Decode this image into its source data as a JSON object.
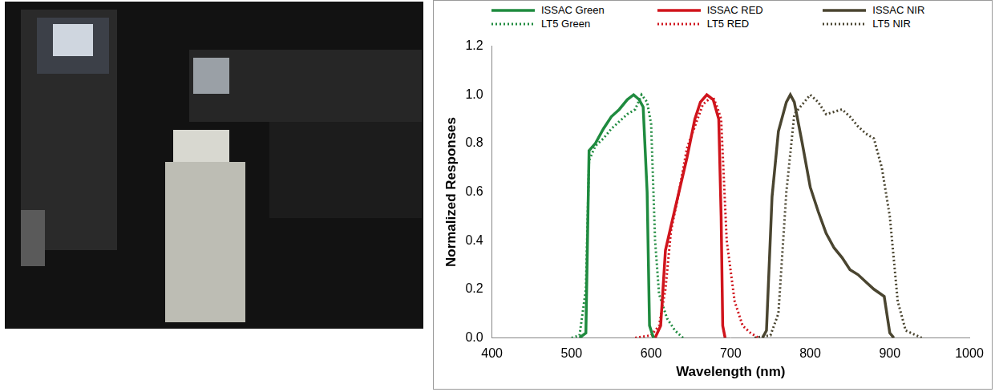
{
  "chart_data": {
    "type": "line",
    "x_label": "Wavelength (nm)",
    "y_label": "Normalized Responses",
    "xlim": [
      400,
      1000
    ],
    "xticks": [
      400,
      500,
      600,
      700,
      800,
      900,
      1000
    ],
    "ylim": [
      0,
      1.2
    ],
    "yticks": [
      {
        "value": 0,
        "label": "0.0"
      },
      {
        "value": 0.2,
        "label": "0.2"
      },
      {
        "value": 0.4,
        "label": "0.4"
      },
      {
        "value": 0.6,
        "label": "0.6"
      },
      {
        "value": 0.8,
        "label": "0.8"
      },
      {
        "value": 1.0,
        "label": "1.0"
      },
      {
        "value": 1.2,
        "label": "1.2"
      }
    ],
    "grid": false,
    "legend": "top",
    "series": [
      {
        "name": "ISSAC Green",
        "color": "#1f8b3f",
        "line_style": "solid",
        "x": [
          510,
          518,
          522,
          530,
          540,
          550,
          560,
          570,
          578,
          585,
          590,
          595,
          598,
          603
        ],
        "values": [
          0,
          0.02,
          0.77,
          0.8,
          0.86,
          0.91,
          0.94,
          0.98,
          1.0,
          0.98,
          0.95,
          0.6,
          0.05,
          0
        ]
      },
      {
        "name": "ISSAC RED",
        "color": "#d0141c",
        "line_style": "solid",
        "x": [
          605,
          612,
          618,
          625,
          635,
          645,
          655,
          662,
          670,
          678,
          685,
          688,
          690,
          693
        ],
        "values": [
          0,
          0.05,
          0.36,
          0.46,
          0.6,
          0.74,
          0.9,
          0.97,
          1.0,
          0.98,
          0.9,
          0.5,
          0.05,
          0
        ]
      },
      {
        "name": "ISSAC NIR",
        "color": "#4a4530",
        "line_style": "solid",
        "x": [
          740,
          745,
          752,
          760,
          770,
          775,
          780,
          790,
          800,
          810,
          820,
          830,
          840,
          850,
          860,
          870,
          880,
          893,
          900,
          905
        ],
        "values": [
          0,
          0.03,
          0.58,
          0.85,
          0.97,
          1.0,
          0.97,
          0.8,
          0.62,
          0.52,
          0.43,
          0.37,
          0.33,
          0.28,
          0.26,
          0.23,
          0.2,
          0.17,
          0.02,
          0
        ]
      },
      {
        "name": "LT5 Green",
        "color": "#1f8b3f",
        "line_style": "dotted",
        "x": [
          500,
          510,
          518,
          522,
          530,
          540,
          550,
          560,
          570,
          580,
          588,
          595,
          600,
          605,
          610,
          620,
          630,
          640
        ],
        "values": [
          0,
          0.01,
          0.2,
          0.73,
          0.79,
          0.82,
          0.86,
          0.89,
          0.92,
          0.94,
          1.0,
          0.97,
          0.88,
          0.4,
          0.18,
          0.08,
          0.03,
          0
        ]
      },
      {
        "name": "LT5 RED",
        "color": "#d0141c",
        "line_style": "dotted",
        "x": [
          580,
          600,
          610,
          618,
          625,
          635,
          645,
          655,
          665,
          672,
          678,
          683,
          688,
          695,
          705,
          715,
          725,
          735
        ],
        "values": [
          0,
          0.01,
          0.05,
          0.2,
          0.44,
          0.6,
          0.78,
          0.87,
          0.96,
          0.98,
          0.99,
          0.95,
          0.9,
          0.4,
          0.15,
          0.05,
          0.02,
          0
        ]
      },
      {
        "name": "LT5 NIR",
        "color": "#4a4530",
        "line_style": "dotted",
        "x": [
          730,
          750,
          760,
          770,
          780,
          790,
          800,
          810,
          820,
          830,
          840,
          850,
          860,
          870,
          880,
          890,
          900,
          910,
          920,
          940
        ],
        "values": [
          0,
          0.01,
          0.1,
          0.6,
          0.92,
          0.96,
          1.0,
          0.97,
          0.92,
          0.93,
          0.94,
          0.91,
          0.87,
          0.84,
          0.82,
          0.7,
          0.5,
          0.15,
          0.03,
          0
        ]
      }
    ]
  }
}
